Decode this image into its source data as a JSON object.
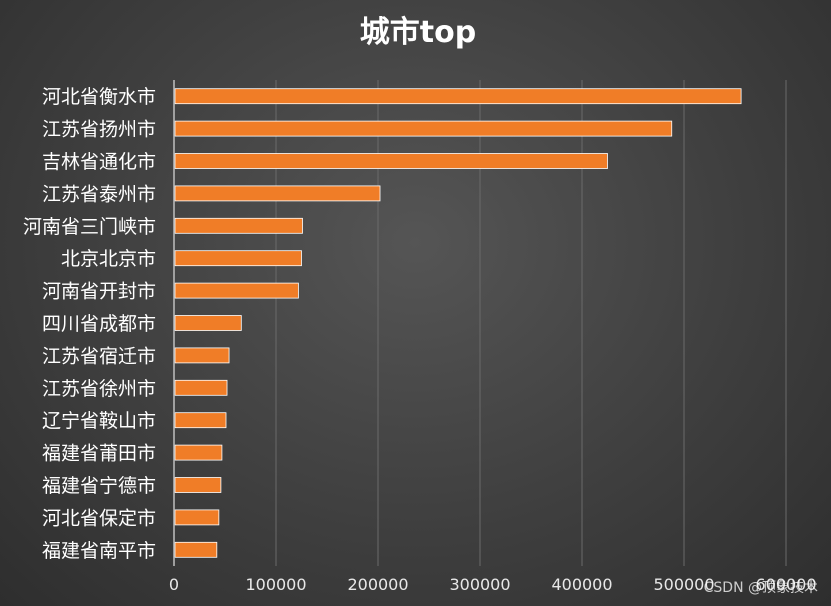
{
  "watermark": "CSDN @顶象技术",
  "colors": {
    "bar": "#f07d27",
    "grid": "#6a6a6a",
    "axis": "#bfbfbf"
  },
  "chart_data": {
    "type": "bar",
    "orientation": "horizontal",
    "title": "城市top",
    "xlabel": "",
    "ylabel": "",
    "categories": [
      "河北省衡水市",
      "江苏省扬州市",
      "吉林省通化市",
      "江苏省泰州市",
      "河南省三门峡市",
      "北京北京市",
      "河南省开封市",
      "四川省成都市",
      "江苏省宿迁市",
      "江苏省徐州市",
      "辽宁省鞍山市",
      "福建省莆田市",
      "福建省宁德市",
      "河北省保定市",
      "福建省南平市"
    ],
    "values": [
      555000,
      487000,
      424000,
      201000,
      125000,
      124000,
      121000,
      65000,
      53000,
      51000,
      50000,
      46000,
      45000,
      43000,
      41000
    ],
    "xlim": [
      0,
      600000
    ],
    "xticks": [
      0,
      100000,
      200000,
      300000,
      400000,
      500000,
      600000
    ],
    "xtick_labels": [
      "0",
      "100000",
      "200000",
      "300000",
      "400000",
      "500000",
      "600000"
    ],
    "grid": true,
    "legend": "none"
  }
}
